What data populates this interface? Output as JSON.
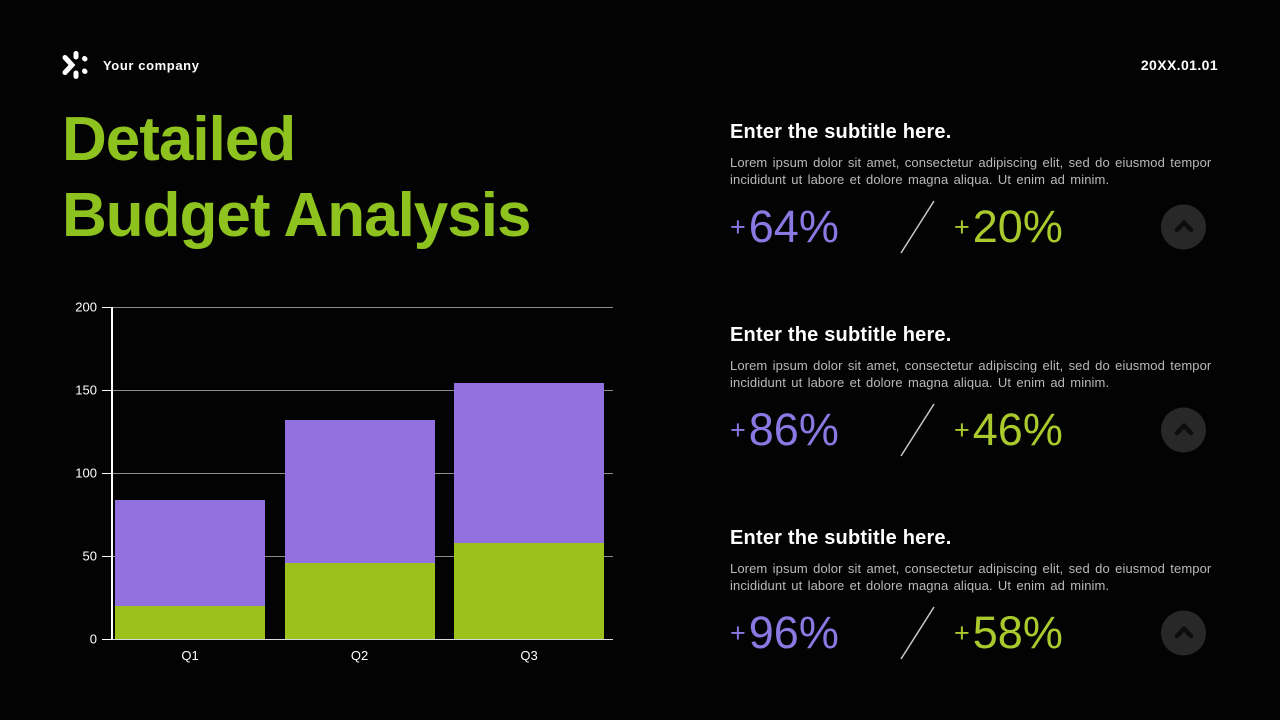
{
  "header": {
    "company_name": "Your company",
    "date": "20XX.01.01",
    "logo_icon": "asterisk-spark-icon"
  },
  "title": {
    "line1": "Detailed",
    "line2": "Budget Analysis"
  },
  "chart_data": {
    "type": "bar",
    "stacked": true,
    "categories": [
      "Q1",
      "Q2",
      "Q3"
    ],
    "series": [
      {
        "name": "green-segment",
        "color": "#9cc11d",
        "values": [
          20,
          46,
          58
        ]
      },
      {
        "name": "purple-segment",
        "color": "#9271df",
        "values": [
          64,
          86,
          96
        ]
      }
    ],
    "totals": [
      84,
      132,
      154
    ],
    "title": "",
    "xlabel": "",
    "ylabel": "",
    "ylim": [
      0,
      200
    ],
    "yticks": [
      0,
      50,
      100,
      150,
      200
    ],
    "grid": true,
    "legend_position": "none"
  },
  "panels": [
    {
      "subtitle": "Enter the subtitle here.",
      "body": "Lorem ipsum dolor sit amet, consectetur adipiscing elit, sed do eiusmod tempor incididunt ut labore et dolore magna aliqua. Ut enim ad minim.",
      "stat_left": {
        "sign": "+",
        "value": "64",
        "suffix": "%"
      },
      "stat_right": {
        "sign": "+",
        "value": "20",
        "suffix": "%"
      }
    },
    {
      "subtitle": "Enter the subtitle here.",
      "body": "Lorem ipsum dolor sit amet, consectetur adipiscing elit, sed do eiusmod tempor incididunt ut labore et dolore magna aliqua. Ut enim ad minim.",
      "stat_left": {
        "sign": "+",
        "value": "86",
        "suffix": "%"
      },
      "stat_right": {
        "sign": "+",
        "value": "46",
        "suffix": "%"
      }
    },
    {
      "subtitle": "Enter the subtitle here.",
      "body": "Lorem ipsum dolor sit amet, consectetur adipiscing elit, sed do eiusmod tempor incididunt ut labore et dolore magna aliqua. Ut enim ad minim.",
      "stat_left": {
        "sign": "+",
        "value": "96",
        "suffix": "%"
      },
      "stat_right": {
        "sign": "+",
        "value": "58",
        "suffix": "%"
      }
    }
  ],
  "colors": {
    "background": "#030303",
    "title_green": "#8dc21f",
    "bar_green": "#9cc11d",
    "bar_purple": "#9271df",
    "stat_purple": "#8979e3",
    "stat_green": "#a9c92d",
    "body_text": "#b9b9b9",
    "heading_text": "#ffffff",
    "circle_button_bg": "#282828",
    "chevron": "#0d0d0d"
  }
}
